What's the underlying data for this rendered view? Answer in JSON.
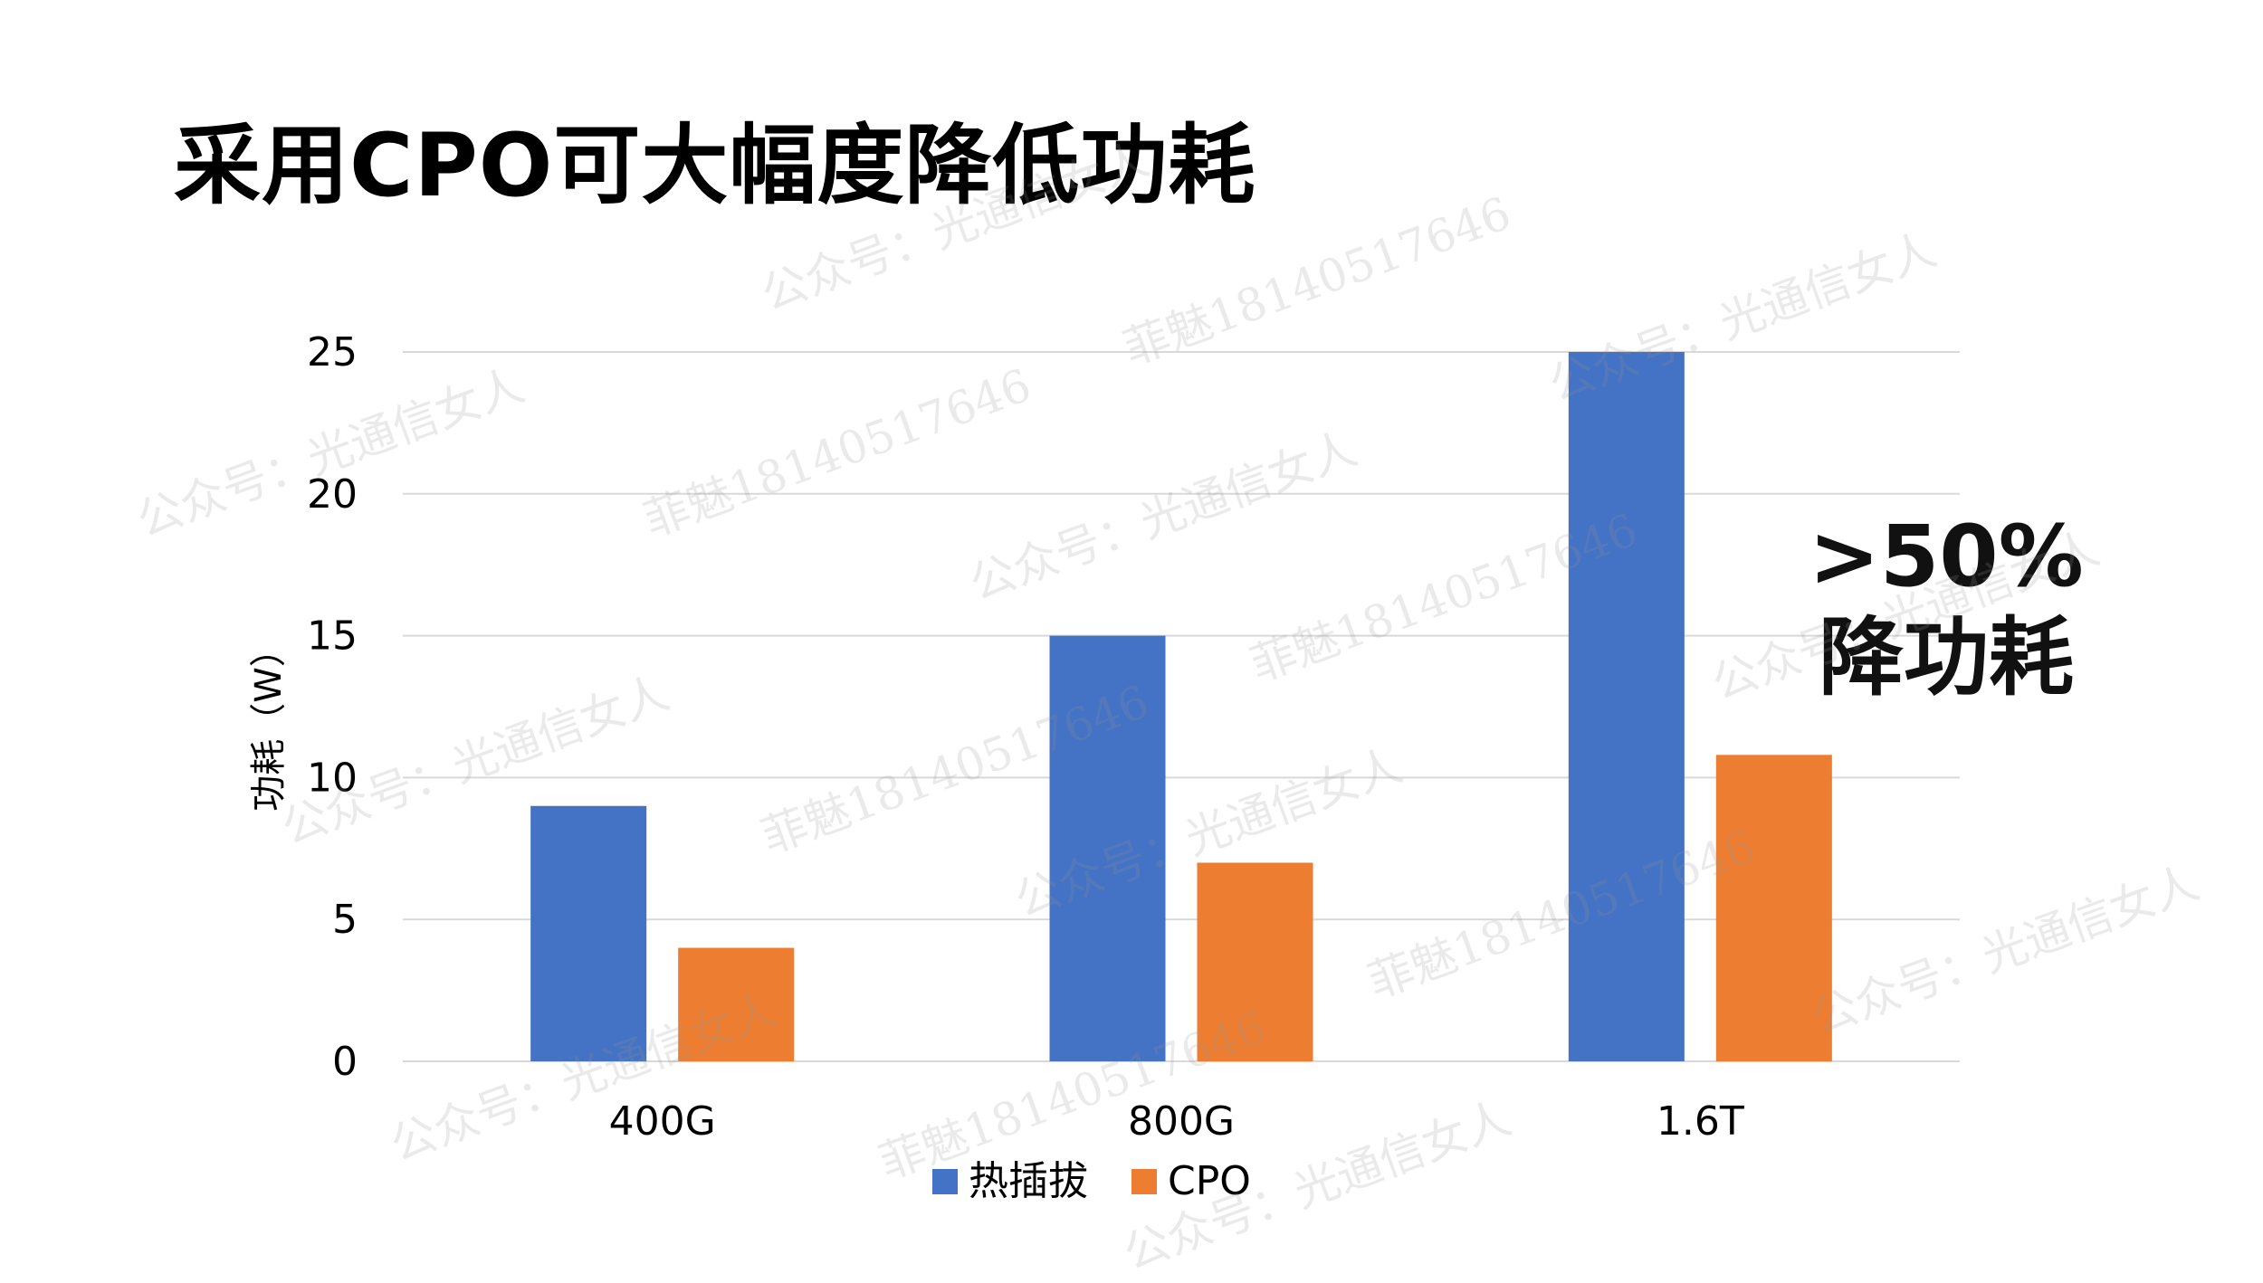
{
  "slide": {
    "title": "采用CPO可大幅度降低功耗",
    "callout_pct": ">50%",
    "callout_text": "降功耗",
    "watermark_account": "公众号：光通信女人",
    "watermark_author": "菲魅18140517646"
  },
  "colors": {
    "series_hot_plug": "#4472C4",
    "series_cpo": "#ED7D31",
    "gridline": "#D9D9D9",
    "text": "#000000"
  },
  "chart_data": {
    "type": "bar",
    "title": "",
    "xlabel": "",
    "ylabel": "功耗（W）",
    "categories": [
      "400G",
      "800G",
      "1.6T"
    ],
    "series": [
      {
        "name": "热插拔",
        "values": [
          9,
          15,
          25
        ]
      },
      {
        "name": "CPO",
        "values": [
          4,
          7,
          10.8
        ]
      }
    ],
    "ylim": [
      0,
      25
    ],
    "yticks": [
      0,
      5,
      10,
      15,
      20,
      25
    ],
    "grid": true,
    "legend_position": "bottom"
  }
}
